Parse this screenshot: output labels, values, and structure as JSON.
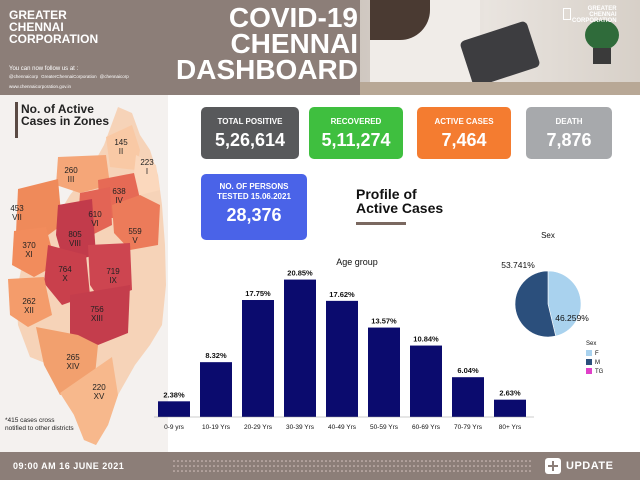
{
  "header": {
    "brand": "GREATER\nCHENNAI\nCORPORATION",
    "follow_text": "You can now follow us at :",
    "social": [
      "@chennaicorp",
      "GreaterChennaiCorporation",
      "@chennaicorp"
    ],
    "website": "www.chennaicorporation.gov.in",
    "title": "COVID-19\nCHENNAI\nDASHBOARD",
    "photo_logo": "GREATER\nCHENNAI\nCORPORATION"
  },
  "map": {
    "title": "No. of Active Cases in Zones",
    "zones": [
      {
        "cases": "145",
        "zone": "II"
      },
      {
        "cases": "223",
        "zone": "I"
      },
      {
        "cases": "260",
        "zone": "III"
      },
      {
        "cases": "638",
        "zone": "IV"
      },
      {
        "cases": "453",
        "zone": "VII"
      },
      {
        "cases": "610",
        "zone": "VI"
      },
      {
        "cases": "559",
        "zone": "V"
      },
      {
        "cases": "805",
        "zone": "VIII"
      },
      {
        "cases": "370",
        "zone": "XI"
      },
      {
        "cases": "764",
        "zone": "X"
      },
      {
        "cases": "719",
        "zone": "IX"
      },
      {
        "cases": "262",
        "zone": "XII"
      },
      {
        "cases": "756",
        "zone": "XIII"
      },
      {
        "cases": "265",
        "zone": "XIV"
      },
      {
        "cases": "220",
        "zone": "XV"
      }
    ],
    "footnote": "*415 cases cross notified to other districts"
  },
  "stats": {
    "total_positive": {
      "label": "TOTAL POSITIVE",
      "value": "5,26,614",
      "color": "#58595b"
    },
    "recovered": {
      "label": "RECOVERED",
      "value": "5,11,274",
      "color": "#3fbf3f"
    },
    "active": {
      "label": "ACTIVE CASES",
      "value": "7,464",
      "color": "#f47c30"
    },
    "death": {
      "label": "DEATH",
      "value": "7,876",
      "color": "#a7a9ac"
    },
    "tested": {
      "label": "NO. OF PERSONS\nTESTED 15.06.2021",
      "value": "28,376",
      "color": "#4a63e8"
    }
  },
  "profile_title": "Profile of\nActive Cases",
  "chart_data": [
    {
      "type": "bar",
      "title": "Age group",
      "categories": [
        "0-9 yrs",
        "10-19 Yrs",
        "20-29 Yrs",
        "30-39 Yrs",
        "40-49 Yrs",
        "50-59 Yrs",
        "60-69 Yrs",
        "70-79 Yrs",
        "80+ Yrs"
      ],
      "values": [
        2.38,
        8.32,
        17.75,
        20.85,
        17.62,
        13.57,
        10.84,
        6.04,
        2.63
      ],
      "data_labels": [
        "2.38%",
        "8.32%",
        "17.75%",
        "20.85%",
        "17.62%",
        "13.57%",
        "10.84%",
        "6.04%",
        "2.63%"
      ],
      "bar_color": "#0b0b6e"
    },
    {
      "type": "pie",
      "title": "Sex",
      "slices": [
        {
          "name": "F",
          "value": 46.259,
          "label": "46.259%",
          "color": "#a9d2ee"
        },
        {
          "name": "M",
          "value": 53.741,
          "label": "53.741%",
          "color": "#2b4f7c"
        },
        {
          "name": "TG",
          "value": 0,
          "label": "",
          "color": "#e040c8"
        }
      ],
      "legend_title": "Sex",
      "legend_placement": "bottom-left"
    }
  ],
  "footer": {
    "timestamp": "09:00 AM 16 JUNE 2021",
    "update_label": "UPDATE"
  }
}
